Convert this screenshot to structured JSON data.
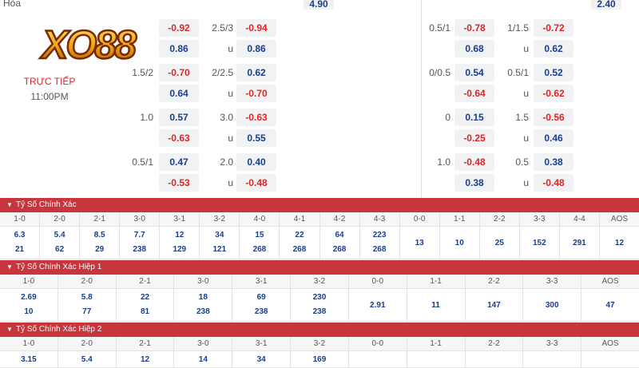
{
  "header": {
    "draw_label": "Hòa",
    "draw_odds_left": "4.90",
    "draw_odds_right": "2.40"
  },
  "match": {
    "status": "TRỰC TIẾP",
    "time": "11:00PM"
  },
  "left_rows": [
    {
      "hcap": "",
      "h1": "-0.92",
      "h2": "0.86",
      "ou": "2.5/3",
      "o1": "-0.94",
      "u": "u",
      "o2": "0.86"
    },
    {
      "hcap": "1.5/2",
      "h1": "-0.70",
      "h2": "0.64",
      "ou": "2/2.5",
      "o1": "0.62",
      "u": "u",
      "o2": "-0.70"
    },
    {
      "hcap": "1.0",
      "h1": "0.57",
      "h2": "-0.63",
      "ou": "3.0",
      "o1": "-0.63",
      "u": "u",
      "o2": "0.55"
    },
    {
      "hcap": "0.5/1",
      "h1": "0.47",
      "h2": "-0.53",
      "ou": "2.0",
      "o1": "0.40",
      "u": "u",
      "o2": "-0.48"
    }
  ],
  "right_rows": [
    {
      "hcap": "0.5/1",
      "h1": "-0.78",
      "h2": "0.68",
      "ou": "1/1.5",
      "o1": "-0.72",
      "u": "u",
      "o2": "0.62"
    },
    {
      "hcap": "0/0.5",
      "h1": "0.54",
      "h2": "-0.64",
      "ou": "0.5/1",
      "o1": "0.52",
      "u": "u",
      "o2": "-0.62"
    },
    {
      "hcap": "0",
      "h1": "0.15",
      "h2": "-0.25",
      "ou": "1.5",
      "o1": "-0.56",
      "u": "u",
      "o2": "0.46"
    },
    {
      "hcap": "1.0",
      "h1": "-0.48",
      "h2": "0.38",
      "ou": "0.5",
      "o1": "0.38",
      "u": "u",
      "o2": "-0.48"
    }
  ],
  "sections": [
    {
      "title": "Tỷ Số Chính Xác",
      "cols": [
        {
          "h": "1-0",
          "a": "6.3",
          "b": "21"
        },
        {
          "h": "2-0",
          "a": "5.4",
          "b": "62"
        },
        {
          "h": "2-1",
          "a": "8.5",
          "b": "29"
        },
        {
          "h": "3-0",
          "a": "7.7",
          "b": "238"
        },
        {
          "h": "3-1",
          "a": "12",
          "b": "129"
        },
        {
          "h": "3-2",
          "a": "34",
          "b": "121"
        },
        {
          "h": "4-0",
          "a": "15",
          "b": "268"
        },
        {
          "h": "4-1",
          "a": "22",
          "b": "268"
        },
        {
          "h": "4-2",
          "a": "64",
          "b": "268"
        },
        {
          "h": "4-3",
          "a": "223",
          "b": "268"
        },
        {
          "h": "0-0",
          "s": "13"
        },
        {
          "h": "1-1",
          "s": "10"
        },
        {
          "h": "2-2",
          "s": "25"
        },
        {
          "h": "3-3",
          "s": "152"
        },
        {
          "h": "4-4",
          "s": "291"
        },
        {
          "h": "AOS",
          "s": "12"
        }
      ]
    },
    {
      "title": "Tỷ Số Chính Xác Hiệp 1",
      "cols": [
        {
          "h": "1-0",
          "a": "2.69",
          "b": "10"
        },
        {
          "h": "2-0",
          "a": "5.8",
          "b": "77"
        },
        {
          "h": "2-1",
          "a": "22",
          "b": "81"
        },
        {
          "h": "3-0",
          "a": "18",
          "b": "238"
        },
        {
          "h": "3-1",
          "a": "69",
          "b": "238"
        },
        {
          "h": "3-2",
          "a": "230",
          "b": "238"
        },
        {
          "h": "0-0",
          "s": "2.91"
        },
        {
          "h": "1-1",
          "s": "11"
        },
        {
          "h": "2-2",
          "s": "147"
        },
        {
          "h": "3-3",
          "s": "300"
        },
        {
          "h": "AOS",
          "s": "47"
        }
      ]
    },
    {
      "title": "Tỷ Số Chính Xác Hiệp 2",
      "cols": [
        {
          "h": "1-0",
          "a": "3.15"
        },
        {
          "h": "2-0",
          "a": "5.4"
        },
        {
          "h": "2-1",
          "a": "12"
        },
        {
          "h": "3-0",
          "a": "14"
        },
        {
          "h": "3-1",
          "a": "34"
        },
        {
          "h": "3-2",
          "a": "169"
        },
        {
          "h": "0-0",
          "a": ""
        },
        {
          "h": "1-1",
          "a": ""
        },
        {
          "h": "2-2",
          "a": ""
        },
        {
          "h": "3-3",
          "a": ""
        },
        {
          "h": "AOS",
          "a": ""
        }
      ]
    }
  ],
  "colors": {
    "negative": "#e02424",
    "positive": "#1a3e8c",
    "section_header": "#c8353d"
  }
}
